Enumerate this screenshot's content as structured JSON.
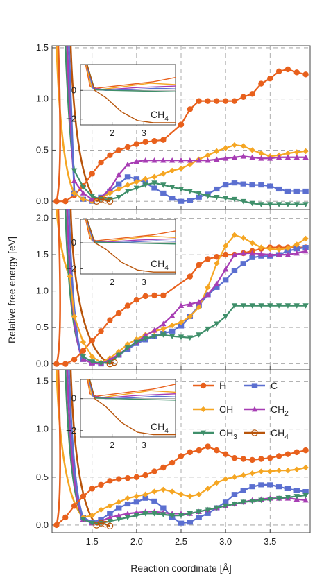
{
  "figure": {
    "xlabel": "Reaction coordinate [Å]",
    "ylabel": "Relative free energy [eV]"
  },
  "colors": {
    "H": "#e8601c",
    "C": "#5b6fd0",
    "CH": "#f5a623",
    "CH2": "#a73db4",
    "CH3": "#3f8f6a",
    "CH4": "#b8540a",
    "grid": "#999999",
    "frame": "#444444"
  },
  "legend": [
    {
      "key": "H",
      "label": "H",
      "marker": "circle"
    },
    {
      "key": "C",
      "label": "C",
      "marker": "square"
    },
    {
      "key": "CH",
      "label": "CH",
      "marker": "diamond"
    },
    {
      "key": "CH2",
      "label": "CH",
      "sub": "2",
      "marker": "triangle-up"
    },
    {
      "key": "CH3",
      "label": "CH",
      "sub": "3",
      "marker": "triangle-down"
    },
    {
      "key": "CH4",
      "label": "CH",
      "sub": "4",
      "marker": "open-circle"
    }
  ],
  "inset_label": {
    "text": "CH",
    "sub": "4"
  },
  "chart_data": [
    {
      "type": "line",
      "xlim": [
        1.05,
        3.95
      ],
      "ylim": [
        -0.08,
        1.52
      ],
      "xticks": [
        "1.5",
        "2.0",
        "2.5",
        "3.0",
        "3.5"
      ],
      "yticks": [
        "0.0",
        "0.5",
        "1.0",
        "1.5"
      ],
      "series": [
        {
          "key": "H",
          "x": [
            1.1,
            1.2,
            1.3,
            1.4,
            1.5,
            1.6,
            1.7,
            1.8,
            1.9,
            2.0,
            2.1,
            2.2,
            2.3,
            2.5,
            2.6,
            2.7,
            2.8,
            2.9,
            3.0,
            3.1,
            3.2,
            3.3,
            3.4,
            3.5,
            3.6,
            3.7,
            3.8,
            3.9
          ],
          "y": [
            0.0,
            0.0,
            0.06,
            0.15,
            0.27,
            0.38,
            0.45,
            0.5,
            0.53,
            0.56,
            0.58,
            0.59,
            0.6,
            0.75,
            0.9,
            0.98,
            0.98,
            0.98,
            0.98,
            0.98,
            1.02,
            1.05,
            1.15,
            1.2,
            1.27,
            1.29,
            1.26,
            1.24
          ]
        },
        {
          "key": "C",
          "x": [
            1.3,
            1.4,
            1.5,
            1.6,
            1.7,
            1.8,
            1.9,
            2.0,
            2.1,
            2.2,
            2.3,
            2.4,
            2.5,
            2.6,
            2.7,
            2.8,
            2.9,
            3.0,
            3.1,
            3.2,
            3.3,
            3.4,
            3.5,
            3.6,
            3.7,
            3.8,
            3.9
          ],
          "y": [
            0.08,
            0.02,
            0.0,
            0.04,
            0.1,
            0.17,
            0.24,
            0.22,
            0.18,
            0.13,
            0.08,
            0.03,
            0.0,
            0.01,
            0.04,
            0.07,
            0.12,
            0.16,
            0.18,
            0.17,
            0.16,
            0.16,
            0.15,
            0.12,
            0.1,
            0.1,
            0.1
          ]
        },
        {
          "key": "CH",
          "x": [
            1.3,
            1.4,
            1.5,
            1.6,
            1.7,
            1.8,
            1.9,
            2.0,
            2.1,
            2.2,
            2.3,
            2.4,
            2.5,
            2.6,
            2.7,
            2.8,
            2.9,
            3.0,
            3.1,
            3.2,
            3.3,
            3.4,
            3.5,
            3.6,
            3.7,
            3.8,
            3.9
          ],
          "y": [
            0.08,
            0.02,
            0.0,
            0.03,
            0.08,
            0.12,
            0.16,
            0.19,
            0.22,
            0.24,
            0.27,
            0.3,
            0.32,
            0.36,
            0.41,
            0.45,
            0.49,
            0.52,
            0.55,
            0.54,
            0.5,
            0.47,
            0.44,
            0.45,
            0.47,
            0.48,
            0.49
          ]
        },
        {
          "key": "CH2",
          "x": [
            1.3,
            1.4,
            1.5,
            1.6,
            1.7,
            1.8,
            1.9,
            2.0,
            2.1,
            2.2,
            2.3,
            2.4,
            2.5,
            2.6,
            2.7,
            2.8,
            2.9,
            3.0,
            3.1,
            3.2,
            3.3,
            3.4,
            3.5,
            3.6,
            3.7,
            3.8,
            3.9
          ],
          "y": [
            0.2,
            0.08,
            0.02,
            0.04,
            0.12,
            0.26,
            0.36,
            0.39,
            0.4,
            0.4,
            0.4,
            0.4,
            0.4,
            0.4,
            0.4,
            0.4,
            0.41,
            0.42,
            0.43,
            0.44,
            0.43,
            0.42,
            0.42,
            0.43,
            0.43,
            0.43,
            0.43
          ]
        },
        {
          "key": "CH3",
          "x": [
            1.3,
            1.4,
            1.5,
            1.6,
            1.7,
            1.8,
            1.9,
            2.0,
            2.1,
            2.2,
            2.3,
            2.4,
            2.5,
            2.6,
            2.7,
            2.8,
            2.9,
            3.0,
            3.1,
            3.2,
            3.3,
            3.4,
            3.5,
            3.6,
            3.7,
            3.8,
            3.9
          ],
          "y": [
            0.3,
            0.14,
            0.05,
            0.02,
            0.02,
            0.04,
            0.1,
            0.13,
            0.16,
            0.18,
            0.16,
            0.14,
            0.12,
            0.1,
            0.08,
            0.05,
            0.04,
            0.03,
            0.02,
            0.0,
            -0.02,
            -0.03,
            -0.03,
            -0.03,
            -0.03,
            -0.03,
            -0.03
          ]
        },
        {
          "key": "CH4",
          "x": [
            1.55,
            1.6,
            1.65,
            1.7
          ],
          "y": [
            0.0,
            0.02,
            0.01,
            0.0
          ],
          "open": true
        }
      ],
      "inset": {
        "xlim": [
          1.0,
          4.0
        ],
        "ylim": [
          -2.4,
          1.8
        ],
        "xticks": [
          "2",
          "3"
        ],
        "yticks": [
          "0",
          "−2"
        ]
      }
    },
    {
      "type": "line",
      "xlim": [
        1.05,
        3.95
      ],
      "ylim": [
        -0.08,
        2.12
      ],
      "xticks": [
        "1.5",
        "2.0",
        "2.5",
        "3.0",
        "3.5"
      ],
      "yticks": [
        "0.0",
        "0.5",
        "1.0",
        "1.5",
        "2.0"
      ],
      "series": [
        {
          "key": "H",
          "x": [
            1.1,
            1.2,
            1.3,
            1.4,
            1.5,
            1.6,
            1.7,
            1.8,
            1.9,
            2.0,
            2.1,
            2.2,
            2.3,
            2.6,
            2.7,
            2.8,
            2.9,
            3.0,
            3.1,
            3.2,
            3.3,
            3.4,
            3.5,
            3.6,
            3.7,
            3.8,
            3.9
          ],
          "y": [
            0.0,
            0.0,
            0.06,
            0.18,
            0.32,
            0.45,
            0.6,
            0.7,
            0.8,
            0.88,
            0.93,
            0.94,
            0.94,
            1.2,
            1.36,
            1.44,
            1.47,
            1.5,
            1.5,
            1.52,
            1.55,
            1.58,
            1.6,
            1.6,
            1.6,
            1.6,
            1.6
          ]
        },
        {
          "key": "C",
          "x": [
            1.4,
            1.5,
            1.6,
            1.7,
            1.8,
            1.9,
            2.0,
            2.1,
            2.2,
            2.3,
            2.4,
            2.5,
            2.6,
            2.7,
            2.8,
            2.9,
            3.0,
            3.1,
            3.2,
            3.3,
            3.4,
            3.5,
            3.6,
            3.7,
            3.8,
            3.9
          ],
          "y": [
            0.06,
            0.02,
            0.0,
            0.04,
            0.12,
            0.2,
            0.28,
            0.33,
            0.38,
            0.42,
            0.45,
            0.52,
            0.65,
            0.8,
            0.95,
            1.05,
            1.15,
            1.28,
            1.38,
            1.46,
            1.48,
            1.48,
            1.5,
            1.55,
            1.58,
            1.6
          ]
        },
        {
          "key": "CH",
          "x": [
            1.25,
            1.3,
            1.4,
            1.5,
            1.6,
            1.7,
            1.8,
            1.9,
            2.0,
            2.1,
            2.2,
            2.3,
            2.4,
            2.5,
            2.6,
            2.7,
            2.8,
            2.9,
            3.0,
            3.1,
            3.2,
            3.3,
            3.4,
            3.5,
            3.6,
            3.7,
            3.8,
            3.9
          ],
          "y": [
            1.2,
            0.65,
            0.3,
            0.1,
            0.02,
            0.08,
            0.17,
            0.27,
            0.34,
            0.4,
            0.45,
            0.48,
            0.53,
            0.57,
            0.65,
            0.78,
            1.05,
            1.38,
            1.62,
            1.77,
            1.73,
            1.66,
            1.6,
            1.58,
            1.57,
            1.59,
            1.64,
            1.72
          ]
        },
        {
          "key": "CH2",
          "x": [
            1.4,
            1.5,
            1.6,
            1.7,
            1.8,
            1.9,
            2.0,
            2.1,
            2.2,
            2.3,
            2.4,
            2.5,
            2.6,
            2.7,
            2.8,
            2.9,
            3.0,
            3.1,
            3.2,
            3.3,
            3.4,
            3.5,
            3.6,
            3.7,
            3.8,
            3.9
          ],
          "y": [
            0.06,
            0.01,
            0.0,
            0.06,
            0.13,
            0.22,
            0.3,
            0.39,
            0.46,
            0.55,
            0.66,
            0.8,
            0.82,
            0.85,
            0.95,
            1.1,
            1.3,
            1.5,
            1.52,
            1.52,
            1.51,
            1.5,
            1.5,
            1.5,
            1.52,
            1.55
          ]
        },
        {
          "key": "CH3",
          "x": [
            1.4,
            1.5,
            1.6,
            1.7,
            1.8,
            1.9,
            2.0,
            2.1,
            2.2,
            2.3,
            2.4,
            2.5,
            2.6,
            2.7,
            2.8,
            2.9,
            3.0,
            3.1,
            3.2,
            3.3,
            3.4,
            3.5,
            3.6,
            3.7,
            3.8,
            3.9
          ],
          "y": [
            0.1,
            0.03,
            0.01,
            0.02,
            0.12,
            0.22,
            0.3,
            0.35,
            0.38,
            0.4,
            0.38,
            0.37,
            0.36,
            0.4,
            0.48,
            0.55,
            0.65,
            0.8,
            0.8,
            0.8,
            0.8,
            0.8,
            0.8,
            0.8,
            0.8,
            0.8
          ]
        },
        {
          "key": "CH4",
          "x": [
            1.7,
            1.75
          ],
          "y": [
            0.0,
            0.02
          ],
          "open": true
        }
      ],
      "inset": {
        "xlim": [
          1.0,
          4.0
        ],
        "ylim": [
          -2.4,
          1.8
        ],
        "xticks": [
          "2",
          "3"
        ],
        "yticks": [
          "0",
          "−2"
        ]
      }
    },
    {
      "type": "line",
      "xlim": [
        1.05,
        3.95
      ],
      "ylim": [
        -0.08,
        1.62
      ],
      "xticks": [
        "1.5",
        "2.0",
        "2.5",
        "3.0",
        "3.5"
      ],
      "yticks": [
        "0.0",
        "0.5",
        "1.0",
        "1.5"
      ],
      "series": [
        {
          "key": "H",
          "x": [
            1.1,
            1.2,
            1.3,
            1.4,
            1.5,
            1.6,
            1.7,
            1.8,
            1.9,
            2.0,
            2.1,
            2.2,
            2.3,
            2.4,
            2.5,
            2.6,
            2.7,
            2.8,
            2.9,
            3.0,
            3.1,
            3.2,
            3.3,
            3.4,
            3.5,
            3.6,
            3.7,
            3.8,
            3.9
          ],
          "y": [
            0.0,
            0.08,
            0.2,
            0.3,
            0.38,
            0.42,
            0.46,
            0.48,
            0.49,
            0.5,
            0.52,
            0.56,
            0.6,
            0.65,
            0.72,
            0.76,
            0.78,
            0.82,
            0.78,
            0.74,
            0.7,
            0.69,
            0.68,
            0.69,
            0.7,
            0.72,
            0.74,
            0.76,
            0.78
          ]
        },
        {
          "key": "C",
          "x": [
            1.4,
            1.5,
            1.6,
            1.7,
            1.8,
            1.9,
            2.0,
            2.1,
            2.2,
            2.3,
            2.4,
            2.5,
            2.6,
            2.7,
            2.8,
            2.9,
            3.0,
            3.1,
            3.2,
            3.3,
            3.4,
            3.5,
            3.6,
            3.7,
            3.8,
            3.9
          ],
          "y": [
            0.08,
            0.03,
            0.06,
            0.12,
            0.18,
            0.22,
            0.24,
            0.28,
            0.25,
            0.18,
            0.08,
            0.02,
            0.03,
            0.08,
            0.12,
            0.18,
            0.24,
            0.32,
            0.36,
            0.4,
            0.42,
            0.42,
            0.4,
            0.38,
            0.36,
            0.35
          ]
        },
        {
          "key": "CH",
          "x": [
            1.4,
            1.5,
            1.6,
            1.7,
            1.8,
            1.9,
            2.0,
            2.1,
            2.2,
            2.3,
            2.4,
            2.5,
            2.6,
            2.7,
            2.8,
            2.9,
            3.0,
            3.1,
            3.2,
            3.3,
            3.4,
            3.5,
            3.6,
            3.7,
            3.8,
            3.9
          ],
          "y": [
            0.08,
            0.1,
            0.16,
            0.2,
            0.24,
            0.28,
            0.3,
            0.32,
            0.35,
            0.37,
            0.35,
            0.32,
            0.3,
            0.32,
            0.38,
            0.44,
            0.48,
            0.5,
            0.52,
            0.54,
            0.56,
            0.56,
            0.57,
            0.57,
            0.58,
            0.6
          ]
        },
        {
          "key": "CH2",
          "x": [
            1.4,
            1.5,
            1.6,
            1.7,
            1.8,
            1.9,
            2.0,
            2.1,
            2.2,
            2.3,
            2.4,
            2.5,
            2.6,
            2.7,
            2.8,
            2.9,
            3.0,
            3.1,
            3.2,
            3.3,
            3.4,
            3.5,
            3.6,
            3.7,
            3.8,
            3.9
          ],
          "y": [
            0.06,
            0.02,
            0.04,
            0.08,
            0.1,
            0.12,
            0.13,
            0.14,
            0.14,
            0.13,
            0.12,
            0.12,
            0.12,
            0.14,
            0.16,
            0.18,
            0.2,
            0.22,
            0.24,
            0.26,
            0.27,
            0.28,
            0.28,
            0.28,
            0.27,
            0.26
          ]
        },
        {
          "key": "CH3",
          "x": [
            1.4,
            1.5,
            1.6,
            1.7,
            1.8,
            1.9,
            2.0,
            2.1,
            2.2,
            2.3,
            2.4,
            2.5,
            2.6,
            2.7,
            2.8,
            2.9,
            3.0,
            3.1,
            3.2,
            3.3,
            3.4,
            3.5,
            3.6,
            3.7,
            3.8,
            3.9
          ],
          "y": [
            0.06,
            0.02,
            0.02,
            0.04,
            0.06,
            0.08,
            0.1,
            0.12,
            0.12,
            0.11,
            0.1,
            0.1,
            0.12,
            0.14,
            0.16,
            0.18,
            0.2,
            0.22,
            0.24,
            0.25,
            0.26,
            0.27,
            0.28,
            0.29,
            0.3,
            0.31
          ]
        },
        {
          "key": "CH4",
          "x": [
            1.55,
            1.6,
            1.65,
            1.7
          ],
          "y": [
            0.0,
            0.02,
            0.01,
            -0.01
          ],
          "open": true
        }
      ],
      "inset": {
        "xlim": [
          1.0,
          4.0
        ],
        "ylim": [
          -2.4,
          1.2
        ],
        "xticks": [
          "2",
          "3"
        ],
        "yticks": [
          "0",
          "−2"
        ]
      }
    }
  ]
}
